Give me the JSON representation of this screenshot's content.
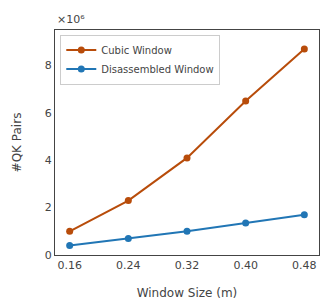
{
  "chart_data": {
    "type": "line",
    "x": [
      0.16,
      0.24,
      0.32,
      0.4,
      0.48
    ],
    "series": [
      {
        "name": "Cubic Window",
        "color": "#b84c0a",
        "values": [
          1.0,
          2.3,
          4.1,
          6.5,
          8.7
        ]
      },
      {
        "name": "Disassembled Window",
        "color": "#2176b5",
        "values": [
          0.4,
          0.7,
          1.0,
          1.35,
          1.7
        ]
      }
    ],
    "xlabel": "Window Size (m)",
    "ylabel": "#QK Pairs",
    "xlim": [
      0.14,
      0.5
    ],
    "ylim": [
      0,
      9.5
    ],
    "xticks": [
      0.16,
      0.24,
      0.32,
      {
        "value": 0.4,
        "label": "0.40"
      },
      0.48
    ],
    "yticks": [
      0,
      2,
      4,
      6,
      8
    ],
    "annotations": [
      "×10⁶"
    ],
    "legend": "upper left",
    "grid": false,
    "marker": "circle"
  }
}
